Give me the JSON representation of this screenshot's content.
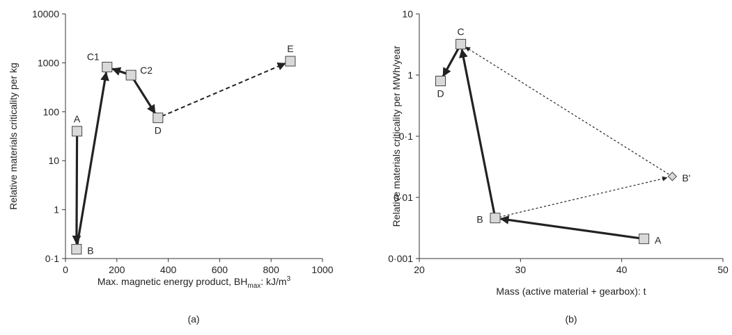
{
  "chart_data": [
    {
      "type": "scatter",
      "caption": "(a)",
      "xlabel_prefix": "Max. magnetic energy product, BH",
      "xlabel_sub": "max",
      "xlabel_mid": ": kJ/m",
      "xlabel_sup": "3",
      "ylabel": "Relative materials criticality per kg",
      "xlim": [
        0,
        1000
      ],
      "ylim": [
        0.1,
        10000
      ],
      "yscale": "log",
      "xticks": [
        0,
        200,
        400,
        600,
        800,
        1000
      ],
      "xtick_labels": [
        "0",
        "200",
        "400",
        "600",
        "800",
        "1000"
      ],
      "yticks": [
        0.1,
        1,
        10,
        100,
        1000,
        10000
      ],
      "ytick_labels": [
        "0·1",
        "1",
        "10",
        "100",
        "1000",
        "10000"
      ],
      "points": [
        {
          "label": "A",
          "x": 45,
          "y": 40,
          "marker": "square",
          "label_pos": "above"
        },
        {
          "label": "B",
          "x": 43,
          "y": 0.155,
          "marker": "square",
          "label_pos": "right"
        },
        {
          "label": "C1",
          "x": 162,
          "y": 820,
          "marker": "square",
          "label_pos": "upper-left"
        },
        {
          "label": "C2",
          "x": 255,
          "y": 560,
          "marker": "square",
          "label_pos": "upper-right"
        },
        {
          "label": "D",
          "x": 360,
          "y": 75,
          "marker": "square",
          "label_pos": "below"
        },
        {
          "label": "E",
          "x": 875,
          "y": 1080,
          "marker": "square",
          "label_pos": "above"
        }
      ],
      "arrows": [
        {
          "from": "A",
          "to": "B",
          "style": "solid"
        },
        {
          "from": "B",
          "to": "C1",
          "style": "solid"
        },
        {
          "from": "C2",
          "to": "C1",
          "style": "solid"
        },
        {
          "from": "C2",
          "to": "D",
          "style": "solid"
        },
        {
          "from": "D",
          "to": "E",
          "style": "dashed"
        }
      ]
    },
    {
      "type": "scatter",
      "caption": "(b)",
      "xlabel": "Mass (active material + gearbox): t",
      "ylabel": "Relative materials criticality per MWh/year",
      "xlim": [
        20,
        50
      ],
      "ylim": [
        0.001,
        10
      ],
      "yscale": "log",
      "xticks": [
        20,
        30,
        40,
        50
      ],
      "xtick_labels": [
        "20",
        "30",
        "40",
        "50"
      ],
      "yticks": [
        0.001,
        0.01,
        0.1,
        1,
        10
      ],
      "ytick_labels": [
        "0·001",
        "0·01",
        "0·1",
        "1",
        "10"
      ],
      "points": [
        {
          "label": "A",
          "x": 42.2,
          "y": 0.0021,
          "marker": "square",
          "label_pos": "right"
        },
        {
          "label": "B",
          "x": 27.5,
          "y": 0.0046,
          "marker": "square",
          "label_pos": "left"
        },
        {
          "label": "C",
          "x": 24.1,
          "y": 3.2,
          "marker": "square",
          "label_pos": "above"
        },
        {
          "label": "D",
          "x": 22.1,
          "y": 0.8,
          "marker": "square",
          "label_pos": "below"
        },
        {
          "label": "B'",
          "x": 45.0,
          "y": 0.022,
          "marker": "diamond",
          "label_pos": "right"
        }
      ],
      "arrows": [
        {
          "from": "A",
          "to": "B",
          "style": "solid"
        },
        {
          "from": "B",
          "to": "C",
          "style": "solid"
        },
        {
          "from": "C",
          "to": "D",
          "style": "solid"
        },
        {
          "from": "B",
          "to": "B'",
          "style": "dashed"
        },
        {
          "from": "B'",
          "to": "C",
          "style": "dashed"
        }
      ]
    }
  ]
}
